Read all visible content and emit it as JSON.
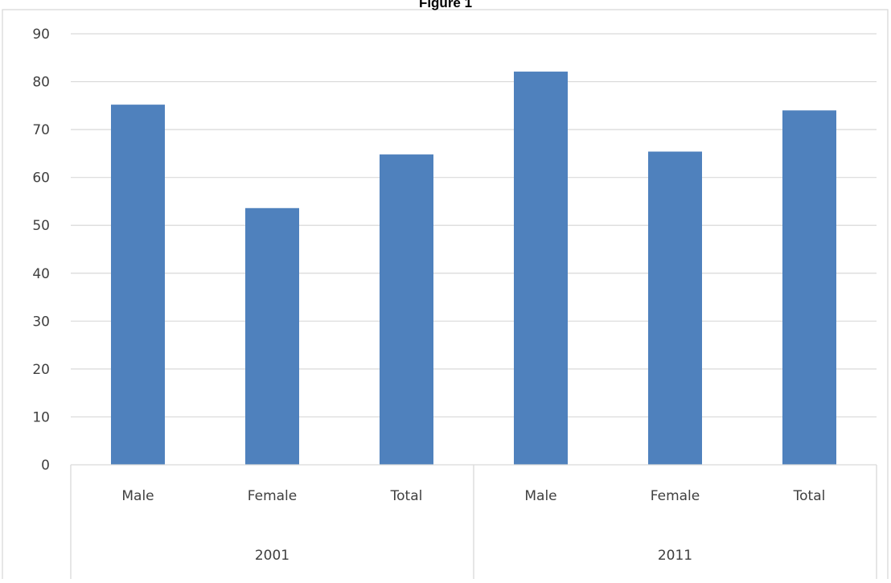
{
  "chart_data": {
    "type": "bar",
    "title": "Figure 1",
    "groups": [
      {
        "label": "2001",
        "categories": [
          "Male",
          "Female",
          "Total"
        ],
        "values": [
          75.2,
          53.6,
          64.8
        ]
      },
      {
        "label": "2011",
        "categories": [
          "Male",
          "Female",
          "Total"
        ],
        "values": [
          82.1,
          65.4,
          74.0
        ]
      }
    ],
    "categories": [
      "Male",
      "Female",
      "Total",
      "Male",
      "Female",
      "Total"
    ],
    "values": [
      75.2,
      53.6,
      64.8,
      82.1,
      65.4,
      74.0
    ],
    "ylim": [
      0,
      90
    ],
    "yticks": [
      "0",
      "10",
      "20",
      "30",
      "40",
      "50",
      "60",
      "70",
      "80",
      "90"
    ],
    "xlabel": "",
    "ylabel": "",
    "grid": true,
    "legend": "none",
    "bar_color": "#4F81BD"
  }
}
